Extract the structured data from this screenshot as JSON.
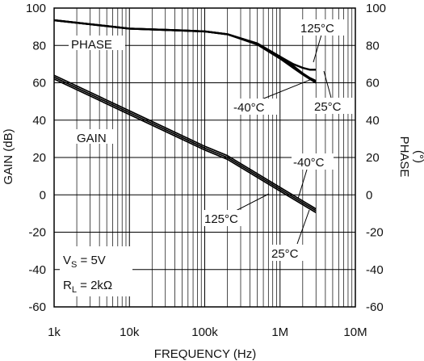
{
  "chart_data": {
    "type": "line",
    "xlabel": "FREQUENCY (Hz)",
    "ylabel_left": "GAIN (dB)",
    "ylabel_right_line1": "PHASE",
    "ylabel_right_line2": "(°)",
    "x_scale": "log",
    "xlim": [
      1000,
      10000000
    ],
    "ylim": [
      -60,
      100
    ],
    "x_tick_labels": [
      "1k",
      "10k",
      "100k",
      "1M",
      "10M"
    ],
    "y_ticks": [
      -60,
      -40,
      -20,
      0,
      20,
      40,
      60,
      80,
      100
    ],
    "grid": true,
    "series": [
      {
        "name": "PHASE",
        "group": "phase",
        "curve": "25°C",
        "points": [
          [
            1000,
            93.5
          ],
          [
            10000,
            89
          ],
          [
            50000,
            88
          ],
          [
            100000,
            87.5
          ],
          [
            200000,
            86
          ],
          [
            500000,
            81
          ],
          [
            1000000,
            74
          ],
          [
            1500000,
            69
          ],
          [
            2000000,
            65
          ],
          [
            2500000,
            62.5
          ],
          [
            3000000,
            61
          ]
        ]
      },
      {
        "name": "PHASE",
        "group": "phase",
        "curve": "125°C",
        "points": [
          [
            1000,
            93.5
          ],
          [
            10000,
            89
          ],
          [
            50000,
            88
          ],
          [
            100000,
            87.5
          ],
          [
            200000,
            86
          ],
          [
            500000,
            81
          ],
          [
            1000000,
            74
          ],
          [
            1500000,
            70
          ],
          [
            2000000,
            68
          ],
          [
            2500000,
            67
          ],
          [
            3000000,
            67
          ]
        ]
      },
      {
        "name": "PHASE",
        "group": "phase",
        "curve": "-40°C",
        "points": [
          [
            1000,
            93.5
          ],
          [
            10000,
            89
          ],
          [
            50000,
            88
          ],
          [
            100000,
            87.5
          ],
          [
            200000,
            86
          ],
          [
            500000,
            80.5
          ],
          [
            1000000,
            73
          ],
          [
            1500000,
            68
          ],
          [
            2000000,
            64.5
          ],
          [
            2500000,
            62
          ],
          [
            3000000,
            60
          ]
        ]
      },
      {
        "name": "GAIN",
        "group": "gain",
        "curve": "-40°C",
        "points": [
          [
            1000,
            64
          ],
          [
            10000,
            45
          ],
          [
            100000,
            26
          ],
          [
            200000,
            21
          ],
          [
            1000000,
            4
          ],
          [
            3000000,
            -7.5
          ]
        ]
      },
      {
        "name": "GAIN",
        "group": "gain",
        "curve": "25°C",
        "points": [
          [
            1000,
            63
          ],
          [
            10000,
            44
          ],
          [
            100000,
            25
          ],
          [
            200000,
            20
          ],
          [
            1000000,
            3
          ],
          [
            3000000,
            -8.5
          ]
        ]
      },
      {
        "name": "GAIN",
        "group": "gain",
        "curve": "125°C",
        "points": [
          [
            1000,
            62
          ],
          [
            10000,
            43
          ],
          [
            100000,
            24
          ],
          [
            200000,
            19
          ],
          [
            1000000,
            2
          ],
          [
            3000000,
            -9.5
          ]
        ]
      }
    ],
    "annotations": {
      "phase_label": "PHASE",
      "gain_label": "GAIN",
      "phase_125": "125°C",
      "phase_neg40": "-40°C",
      "phase_25": "25°C",
      "gain_neg40": "-40°C",
      "gain_125": "125°C",
      "gain_25": "25°C",
      "vs_main": "V",
      "vs_sub": "S",
      "vs_rest": " = 5V",
      "rl_main": "R",
      "rl_sub": "L",
      "rl_rest": " = 2kΩ"
    }
  }
}
